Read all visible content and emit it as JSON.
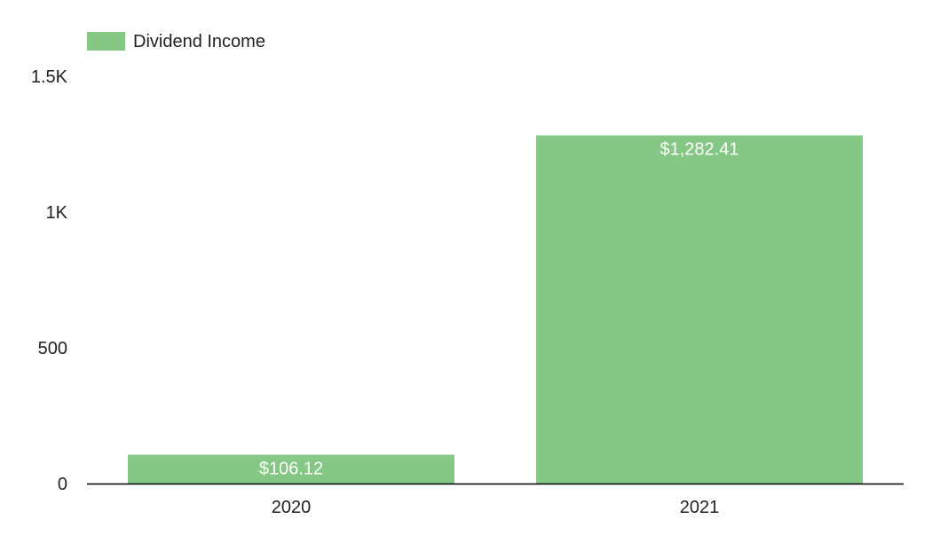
{
  "colors": {
    "bar": "#85c785",
    "axis": "#000000",
    "text": "#222222",
    "data_label": "#ffffff"
  },
  "chart_data": {
    "type": "bar",
    "categories": [
      "2020",
      "2021"
    ],
    "series": [
      {
        "name": "Dividend Income",
        "values": [
          106.12,
          1282.41
        ],
        "labels": [
          "$106.12",
          "$1,282.41"
        ]
      }
    ],
    "title": "",
    "xlabel": "",
    "ylabel": "",
    "ylim": [
      0,
      1500
    ],
    "yticks": [
      0,
      500,
      1000,
      1500
    ],
    "ytick_labels": [
      "0",
      "500",
      "1K",
      "1.5K"
    ],
    "grid": false,
    "legend": "top-left"
  }
}
